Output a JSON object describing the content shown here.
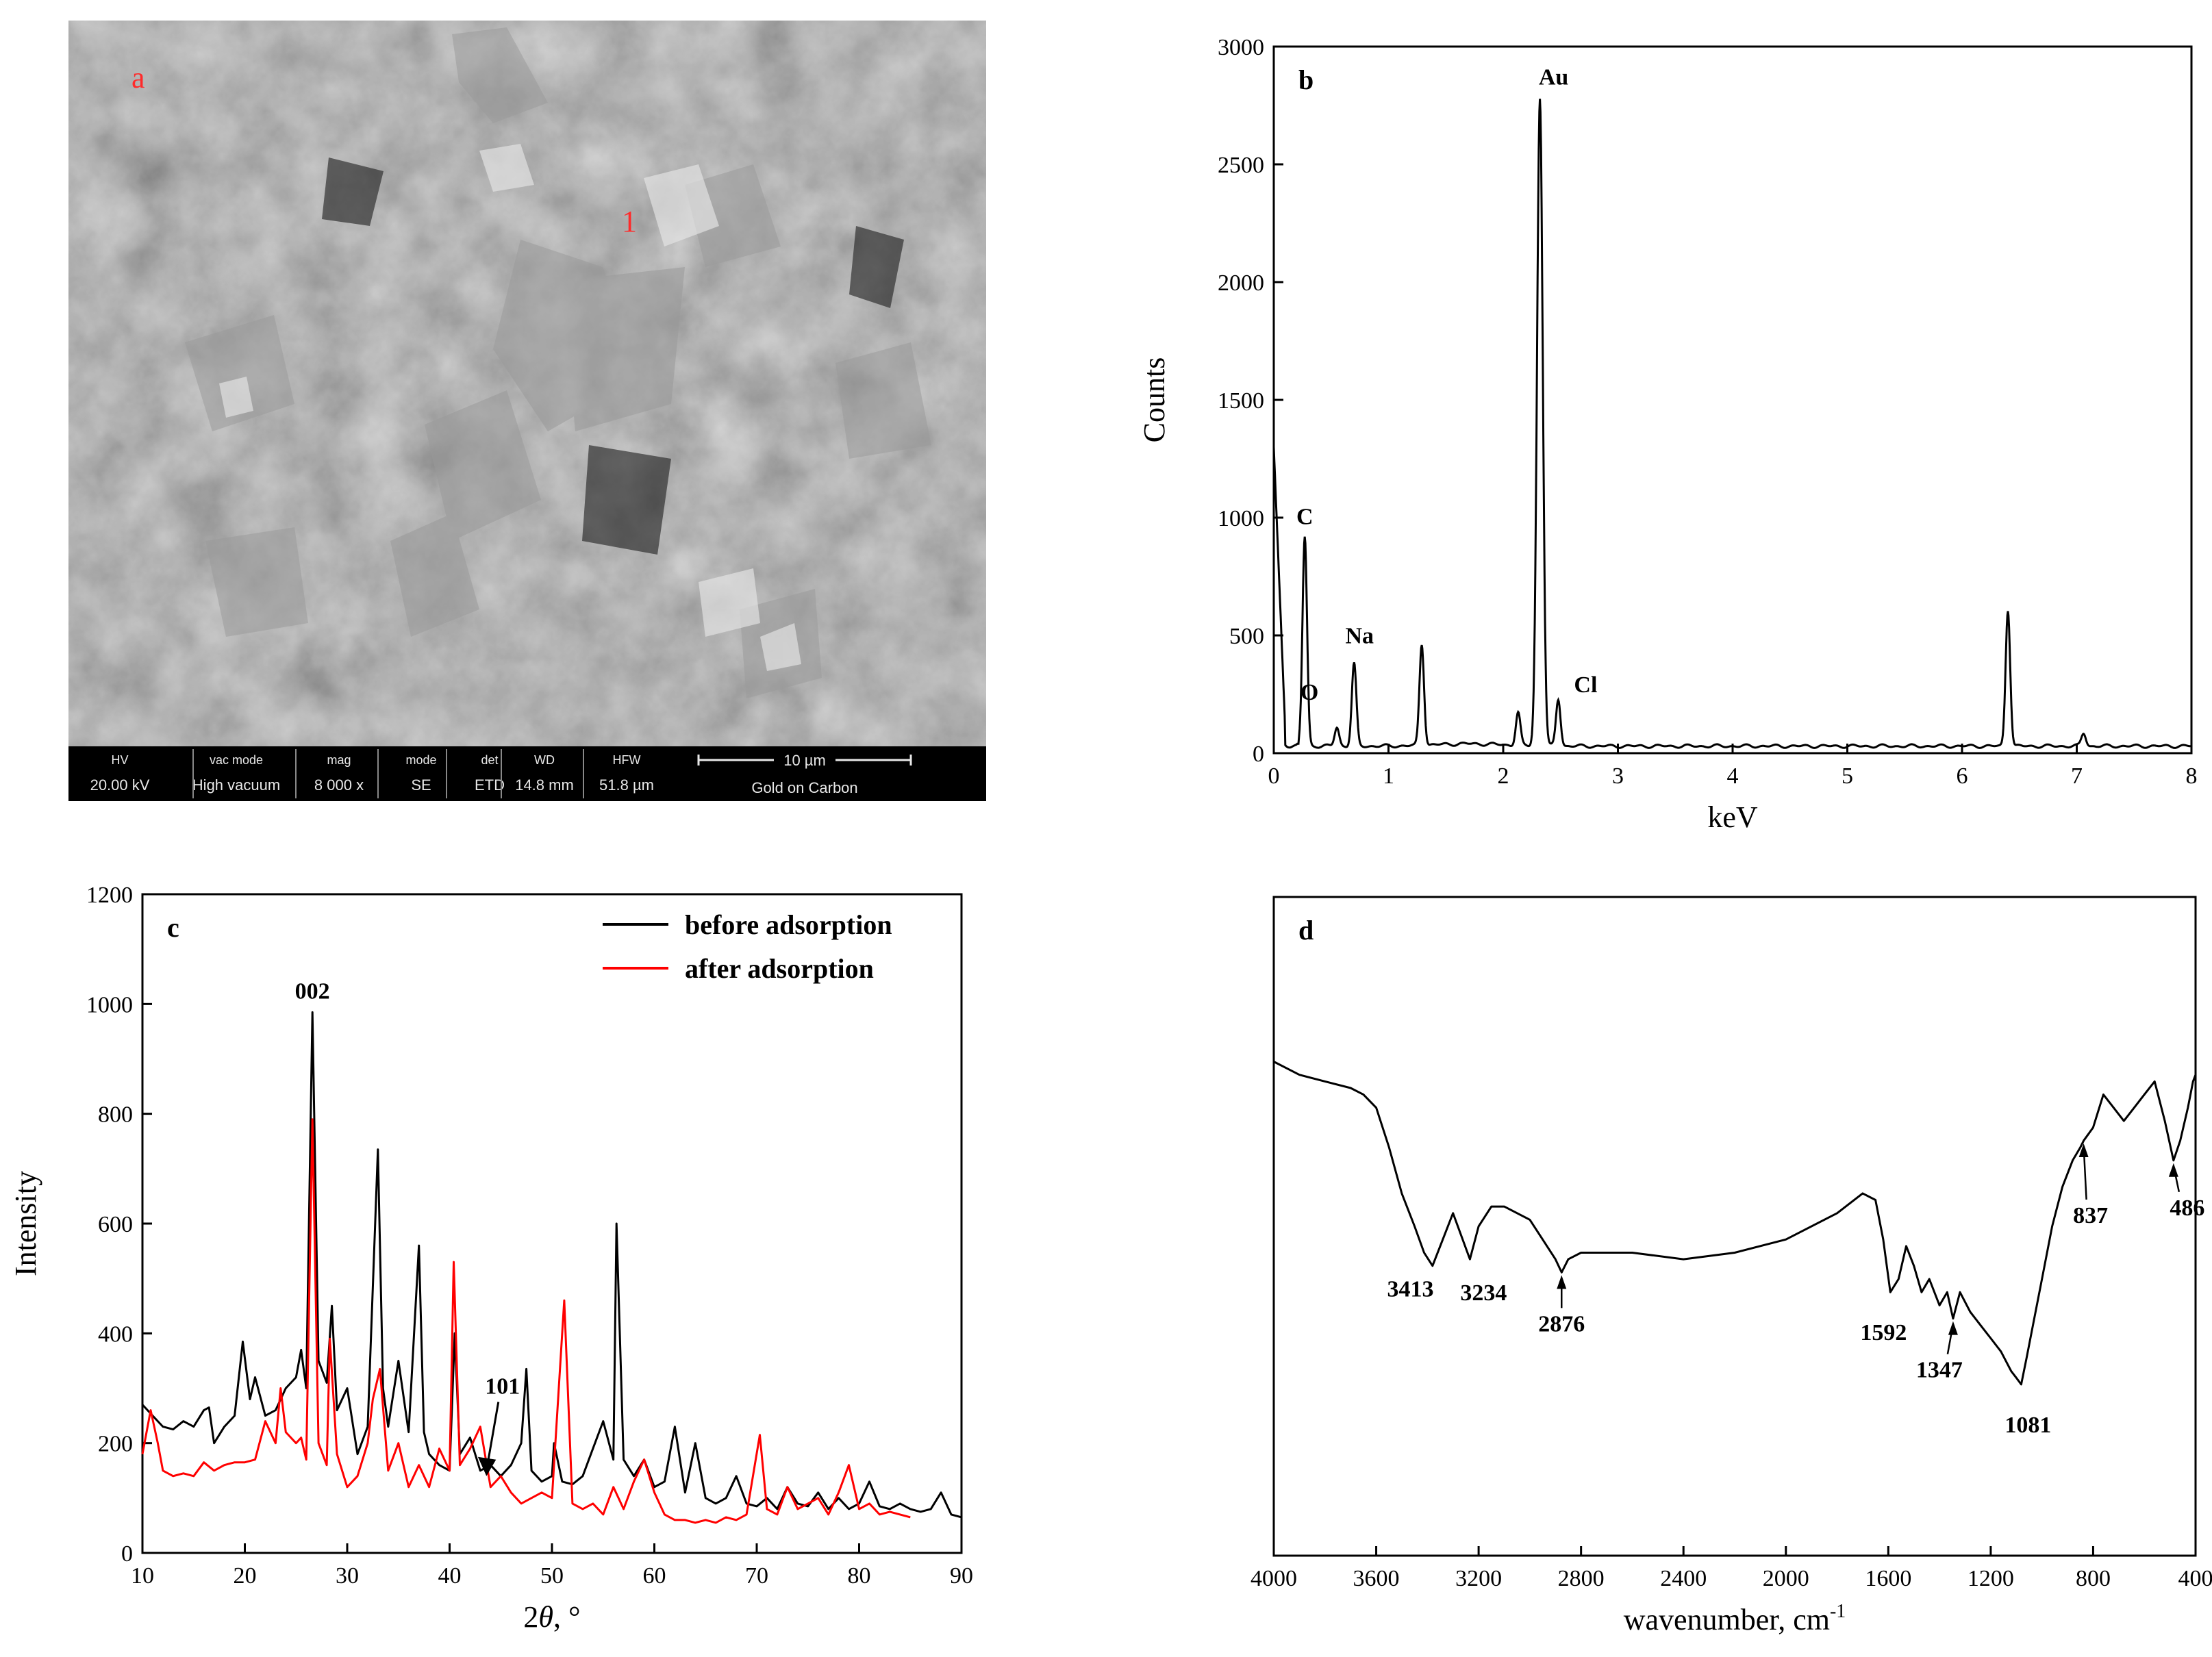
{
  "sem": {
    "panel_label": "a",
    "point_label": "1",
    "info": [
      {
        "label": "HV",
        "value": "20.00 kV"
      },
      {
        "label": "vac mode",
        "value": "High vacuum"
      },
      {
        "label": "mag",
        "value": "8 000 x"
      },
      {
        "label": "mode",
        "value": "SE"
      },
      {
        "label": "det",
        "value": "ETD"
      },
      {
        "label": "WD",
        "value": "14.8 mm"
      },
      {
        "label": "HFW",
        "value": "51.8 µm"
      }
    ],
    "scale_text": "10 µm",
    "coating": "Gold on Carbon"
  },
  "chart_data": [
    {
      "id": "b",
      "type": "line",
      "panel_label": "b",
      "xlabel": "keV",
      "ylabel": "Counts",
      "xlim": [
        0,
        8
      ],
      "ylim": [
        0,
        3000
      ],
      "xticks": [
        0,
        1,
        2,
        3,
        4,
        5,
        6,
        7,
        8
      ],
      "yticks": [
        0,
        500,
        1000,
        1500,
        2000,
        2500,
        3000
      ],
      "baseline": 30,
      "peaks": [
        {
          "x": 0.27,
          "y": 920,
          "label": "C"
        },
        {
          "x": 0.55,
          "y": 110,
          "label": "O"
        },
        {
          "x": 0.7,
          "y": 380,
          "label": "Na"
        },
        {
          "x": 1.29,
          "y": 460,
          "label": ""
        },
        {
          "x": 2.13,
          "y": 170,
          "label": ""
        },
        {
          "x": 2.32,
          "y": 2780,
          "label": "Au"
        },
        {
          "x": 2.48,
          "y": 230,
          "label": "Cl"
        },
        {
          "x": 6.4,
          "y": 610,
          "label": ""
        },
        {
          "x": 7.06,
          "y": 85,
          "label": ""
        }
      ],
      "grid": false,
      "legend": "none"
    },
    {
      "id": "c",
      "type": "line",
      "panel_label": "c",
      "xlabel": "2θ, °",
      "ylabel": "Intensity",
      "xlim": [
        10,
        90
      ],
      "ylim": [
        0,
        1200
      ],
      "xticks": [
        10,
        20,
        30,
        40,
        50,
        60,
        70,
        80,
        90
      ],
      "yticks": [
        0,
        200,
        400,
        600,
        800,
        1000,
        1200
      ],
      "legend": "top-right",
      "annotations": [
        {
          "text": "002",
          "x": 26.6,
          "y": 1010
        },
        {
          "text": "101",
          "x": 44.5,
          "y": 290
        }
      ],
      "series": [
        {
          "name": "before adsorption",
          "color": "#000000",
          "x": [
            10,
            11,
            12,
            13,
            14,
            15,
            16,
            16.5,
            17,
            18,
            19,
            19.8,
            20.5,
            21,
            22,
            23,
            24,
            25,
            25.5,
            26,
            26.6,
            27.2,
            28,
            28.5,
            29,
            30,
            31,
            32,
            33,
            33.5,
            34,
            35,
            36,
            37,
            37.5,
            38,
            39,
            40,
            40.5,
            41,
            42,
            43,
            44,
            45,
            46,
            47,
            47.5,
            48,
            49,
            50,
            50.2,
            51,
            52,
            53,
            54,
            55,
            56,
            56.3,
            57,
            58,
            59,
            60,
            61,
            62,
            63,
            64,
            65,
            66,
            67,
            68,
            69,
            70,
            71,
            72,
            73,
            74,
            75,
            76,
            77,
            78,
            79,
            80,
            81,
            82,
            83,
            84,
            85,
            86,
            87,
            88,
            89,
            90
          ],
          "y": [
            270,
            250,
            230,
            225,
            240,
            230,
            260,
            265,
            200,
            230,
            250,
            385,
            280,
            320,
            250,
            260,
            300,
            320,
            370,
            300,
            985,
            350,
            310,
            450,
            260,
            300,
            180,
            230,
            735,
            300,
            230,
            350,
            220,
            560,
            220,
            180,
            160,
            150,
            400,
            180,
            210,
            150,
            160,
            140,
            160,
            200,
            335,
            150,
            130,
            140,
            200,
            130,
            125,
            140,
            190,
            240,
            170,
            600,
            170,
            140,
            170,
            120,
            130,
            230,
            110,
            200,
            100,
            90,
            100,
            140,
            90,
            85,
            100,
            80,
            120,
            90,
            85,
            110,
            80,
            100,
            80,
            90,
            130,
            85,
            80,
            90,
            80,
            75,
            80,
            110,
            70,
            65
          ]
        },
        {
          "name": "after adsorption",
          "color": "#ff0000",
          "x": [
            10,
            10.8,
            11.5,
            12,
            13,
            14,
            15,
            16,
            17,
            18,
            19,
            20,
            21,
            22,
            23,
            23.5,
            24,
            25,
            25.5,
            26,
            26.6,
            27.2,
            28,
            28.3,
            29,
            30,
            31,
            32,
            32.5,
            33.2,
            34,
            35,
            36,
            37,
            38,
            39,
            40,
            40.4,
            41,
            42,
            43,
            44,
            45,
            46,
            47,
            48,
            49,
            50,
            51.2,
            52,
            53,
            54,
            55,
            56,
            57,
            58,
            59,
            60,
            61,
            62,
            63,
            64,
            65,
            66,
            67,
            68,
            69,
            70.3,
            71,
            72,
            73,
            74,
            75,
            76,
            77,
            78,
            79,
            80,
            81,
            82,
            83,
            84,
            85
          ],
          "y": [
            180,
            260,
            200,
            150,
            140,
            145,
            140,
            165,
            150,
            160,
            165,
            165,
            170,
            240,
            200,
            300,
            220,
            200,
            210,
            170,
            790,
            200,
            160,
            390,
            180,
            120,
            140,
            200,
            280,
            335,
            150,
            200,
            120,
            160,
            120,
            190,
            150,
            530,
            160,
            190,
            230,
            120,
            140,
            110,
            90,
            100,
            110,
            100,
            460,
            90,
            80,
            90,
            70,
            120,
            80,
            130,
            170,
            110,
            70,
            60,
            60,
            55,
            60,
            55,
            65,
            60,
            70,
            215,
            80,
            70,
            120,
            80,
            90,
            100,
            70,
            110,
            160,
            80,
            90,
            70,
            75,
            70,
            65
          ]
        }
      ]
    },
    {
      "id": "d",
      "type": "line",
      "panel_label": "d",
      "xlabel": "wavenumber, cm",
      "xlabel_sup": "-1",
      "xlim": [
        4000,
        400
      ],
      "ylim": [
        0,
        100
      ],
      "xticks": [
        4000,
        3600,
        3200,
        2800,
        2400,
        2000,
        1600,
        1200,
        800,
        400
      ],
      "series": [
        {
          "name": "",
          "x": [
            4000,
            3900,
            3800,
            3700,
            3650,
            3600,
            3550,
            3500,
            3450,
            3413,
            3380,
            3340,
            3300,
            3234,
            3200,
            3150,
            3100,
            3000,
            2950,
            2900,
            2876,
            2850,
            2800,
            2600,
            2400,
            2200,
            2000,
            1800,
            1700,
            1650,
            1620,
            1592,
            1560,
            1530,
            1500,
            1470,
            1440,
            1400,
            1370,
            1347,
            1320,
            1280,
            1240,
            1200,
            1160,
            1120,
            1100,
            1081,
            1060,
            1040,
            1000,
            960,
            920,
            880,
            850,
            837,
            800,
            760,
            720,
            680,
            640,
            600,
            560,
            520,
            486,
            460,
            430,
            410,
            400
          ],
          "y": [
            75,
            73,
            72,
            71,
            70,
            68,
            62,
            55,
            50,
            46,
            44,
            48,
            52,
            45,
            50,
            53,
            53,
            51,
            48,
            45,
            43,
            45,
            46,
            46,
            45,
            46,
            48,
            52,
            55,
            54,
            48,
            40,
            42,
            47,
            44,
            40,
            42,
            38,
            40,
            36,
            40,
            37,
            35,
            33,
            31,
            28,
            27,
            26,
            30,
            34,
            42,
            50,
            56,
            60,
            62,
            63,
            65,
            70,
            68,
            66,
            68,
            70,
            72,
            66,
            60,
            63,
            68,
            72,
            73
          ]
        }
      ],
      "annotations": [
        {
          "text": "3413",
          "x": 3413,
          "y": 46
        },
        {
          "text": "3234",
          "x": 3234,
          "y": 45
        },
        {
          "text": "2876",
          "x": 2876,
          "y": 43
        },
        {
          "text": "1592",
          "x": 1592,
          "y": 40
        },
        {
          "text": "1347",
          "x": 1347,
          "y": 36
        },
        {
          "text": "1081",
          "x": 1081,
          "y": 26
        },
        {
          "text": "837",
          "x": 837,
          "y": 63
        },
        {
          "text": "486",
          "x": 486,
          "y": 60
        }
      ]
    }
  ]
}
